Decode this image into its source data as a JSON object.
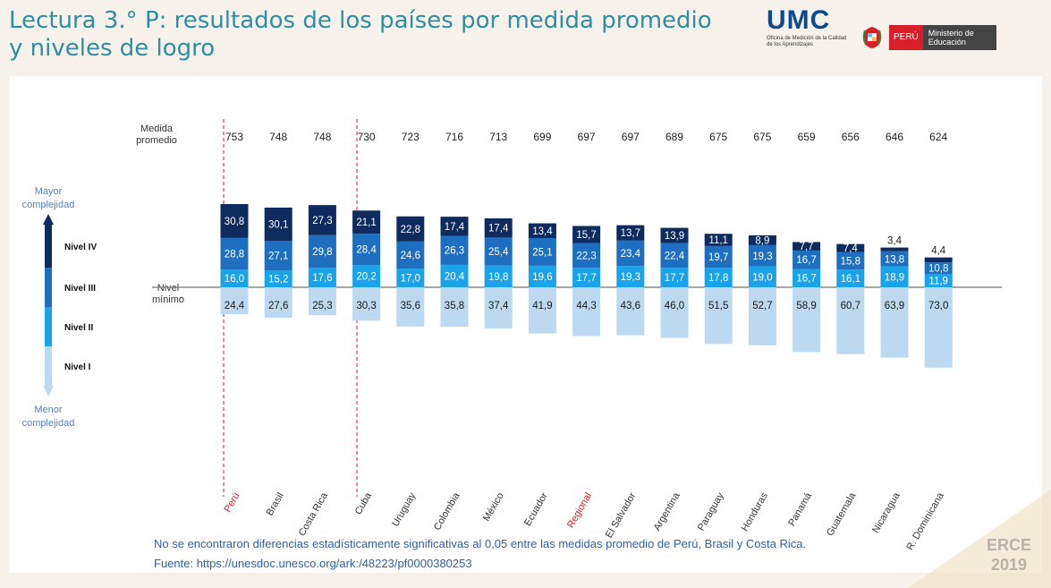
{
  "header": {
    "title": "Lectura 3.° P: resultados de los países por medida promedio y niveles de logro",
    "umc_label": "UMC",
    "umc_subtitle": "Oficina de Medición de la Calidad de los Aprendizajes",
    "peru_label": "PERÚ",
    "ministerio_label": "Ministerio de Educación"
  },
  "footer": {
    "note": "No se encontraron diferencias estadísticamente significativas al 0,05 entre las medidas promedio de Perú, Brasil y Costa Rica.",
    "source": "Fuente: https://unesdoc.unesco.org/ark:/48223/pf0000380253",
    "erce_line1": "ERCE",
    "erce_line2": "2019"
  },
  "chart_data": {
    "type": "bar",
    "subtype": "diverging-stacked",
    "row_label_medida": "Medida promedio",
    "row_label_nivel_minimo": "Nivel mínimo",
    "legend": {
      "top_label": "Mayor complejidad",
      "bottom_label": "Menor complejidad",
      "levels": [
        "Nivel IV",
        "Nivel III",
        "Nivel II",
        "Nivel I"
      ]
    },
    "colors": {
      "Nivel IV": "#0d2b5e",
      "Nivel III": "#1f6fc0",
      "Nivel II": "#1aa3e8",
      "Nivel I": "#bcd9f0"
    },
    "highlight_color": "#d81e27",
    "categories": [
      "Perú",
      "Brasil",
      "Costa Rica",
      "Cuba",
      "Uruguay",
      "Colombia",
      "México",
      "Ecuador",
      "Regional",
      "El Salvador",
      "Argentina",
      "Paraguay",
      "Honduras",
      "Panamá",
      "Guatemala",
      "Nicaragua",
      "R. Dominicana"
    ],
    "highlighted": [
      "Perú",
      "Regional"
    ],
    "medida_promedio": [
      "753",
      "748",
      "748",
      "730",
      "723",
      "716",
      "713",
      "699",
      "697",
      "697",
      "689",
      "675",
      "675",
      "659",
      "656",
      "646",
      "624"
    ],
    "series": [
      {
        "name": "Nivel I",
        "values": [
          24.4,
          27.6,
          25.3,
          30.3,
          35.6,
          35.8,
          37.4,
          41.9,
          44.3,
          43.6,
          46.0,
          51.5,
          52.7,
          58.9,
          60.7,
          63.9,
          73.0
        ],
        "labels": [
          "24,4",
          "27,6",
          "25,3",
          "30,3",
          "35,6",
          "35,8",
          "37,4",
          "41,9",
          "44,3",
          "43,6",
          "46,0",
          "51,5",
          "52,7",
          "58,9",
          "60,7",
          "63,9",
          "73,0"
        ]
      },
      {
        "name": "Nivel II",
        "values": [
          16.0,
          15.2,
          17.6,
          20.2,
          17.0,
          20.4,
          19.8,
          19.6,
          17.7,
          19.3,
          17.7,
          17.8,
          19.0,
          16.7,
          16.1,
          18.9,
          11.9
        ],
        "labels": [
          "16,0",
          "15,2",
          "17,6",
          "20,2",
          "17,0",
          "20,4",
          "19,8",
          "19,6",
          "17,7",
          "19,3",
          "17,7",
          "17,8",
          "19,0",
          "16,7",
          "16,1",
          "18,9",
          "11,9"
        ]
      },
      {
        "name": "Nivel III",
        "values": [
          28.8,
          27.1,
          29.8,
          28.4,
          24.6,
          26.3,
          25.4,
          25.1,
          22.3,
          23.4,
          22.4,
          19.7,
          19.3,
          16.7,
          15.8,
          13.8,
          10.8
        ],
        "labels": [
          "28,8",
          "27,1",
          "29,8",
          "28,4",
          "24,6",
          "26,3",
          "25,4",
          "25,1",
          "22,3",
          "23,4",
          "22,4",
          "19,7",
          "19,3",
          "16,7",
          "15,8",
          "13,8",
          "10,8"
        ]
      },
      {
        "name": "Nivel IV",
        "values": [
          30.8,
          30.1,
          27.3,
          21.1,
          22.8,
          17.4,
          17.4,
          13.4,
          15.7,
          13.7,
          13.9,
          11.1,
          8.9,
          7.7,
          7.4,
          3.4,
          4.4
        ],
        "labels": [
          "30,8",
          "30,1",
          "27,3",
          "21,1",
          "22,8",
          "17,4",
          "17,4",
          "13,4",
          "15,7",
          "13,7",
          "13,9",
          "11,1",
          "8,9",
          "7,7",
          "7,4",
          "3,4",
          "4,4"
        ]
      }
    ]
  }
}
